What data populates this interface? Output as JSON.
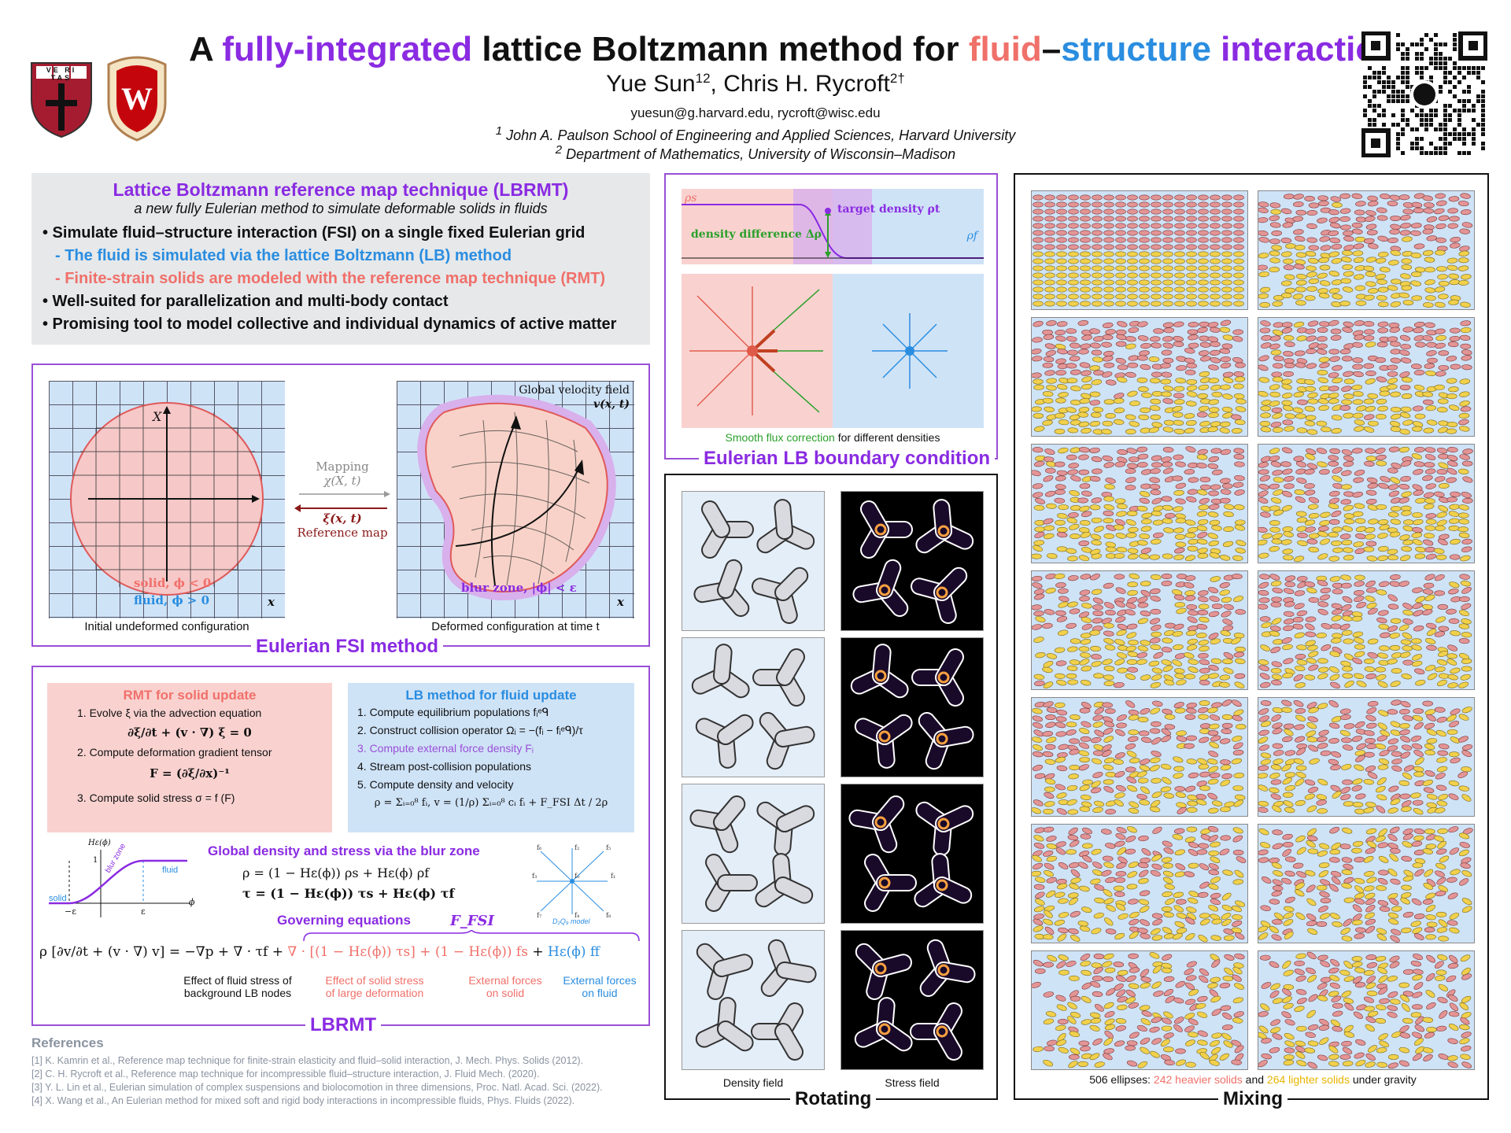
{
  "header": {
    "title_part1": "A ",
    "title_part2": "fully-integrated",
    "title_part3": " lattice Boltzmann method for ",
    "title_part4": "fluid",
    "title_part5": "–",
    "title_part6": "structure",
    "title_part7": " interaction",
    "authors_a": "Yue Sun",
    "authors_a_sup": "12",
    "authors_sep": ", Chris H. Rycroft",
    "authors_b_sup": "2†",
    "emails": "yuesun@g.harvard.edu, rycroft@wisc.edu",
    "aff1_sup": "1",
    "aff1": "John A. Paulson School of Engineering and Applied Sciences, Harvard University",
    "aff2_sup": "2",
    "aff2": "Department of Mathematics, University of Wisconsin–Madison",
    "harvard_shield_text": "VE RI TAS",
    "uw_logo_letter": "W"
  },
  "intro": {
    "title": "Lattice Boltzmann reference map technique (LBRMT)",
    "subtitle": "a new fully Eulerian method to simulate deformable solids in fluids",
    "b1": "• Simulate fluid–structure interaction (FSI) on a single fixed Eulerian grid",
    "b1a": "- The fluid is simulated via the lattice Boltzmann (LB) method",
    "b1b": "- Finite-strain solids are modeled with the reference map technique (RMT)",
    "b2": "• Well-suited for parallelization and multi-body contact",
    "b3": "• Promising tool to model collective and individual dynamics of active matter"
  },
  "fsi": {
    "label": "Eulerian FSI method",
    "axis_X": "X",
    "solid": "solid, ϕ < 0",
    "fluid": "fluid, ϕ > 0",
    "x1": "x",
    "x2": "x",
    "mapping": "Mapping",
    "chi": "χ(X, t)",
    "xi": "ξ(x, t)",
    "refmap": "Reference map",
    "global_vel": "Global velocity field",
    "v_xt": "v(x, t)",
    "blur": "blur zone, |ϕ| < ε",
    "cap1": "Initial undeformed configuration",
    "cap2": "Deformed configuration at time t"
  },
  "lbrmt": {
    "label": "LBRMT",
    "rmt_title": "RMT for solid update",
    "rmt1": "1. Evolve ξ via the advection equation",
    "rmt1_eq": "∂ξ/∂t + (v · ∇) ξ = 0",
    "rmt2": "2. Compute deformation gradient tensor",
    "rmt2_eq": "F = (∂ξ/∂x)⁻¹",
    "rmt3": "3. Compute solid stress σ = f (F)",
    "lb_title": "LB method for fluid update",
    "lb1": "1. Compute equilibrium populations fᵢᵉᑫ",
    "lb2": "2. Construct collision operator Ωᵢ = −(fᵢ − fᵢᵉᑫ)/τ",
    "lb3": "3. Compute external force density Fᵢ",
    "lb4": "4. Stream post-collision populations",
    "lb5": "5. Compute density and velocity",
    "lb5_eq": "ρ = Σᵢ₌₀⁸ fᵢ,  v = (1/ρ) Σᵢ₌₀⁸ cᵢ fᵢ + F_FSI Δt / 2ρ",
    "blur_title": "Global density and stress via the blur zone",
    "rho_eq": "ρ = (1 − Hε(ϕ)) ρs + Hε(ϕ) ρf",
    "tau_eq": "τ = (1 − Hε(ϕ)) τs + Hε(ϕ) τf",
    "gov_title": "Governing equations",
    "ffsi": "F_FSI",
    "gov_lhs": "ρ [∂v/∂t + (v · ∇) v] = −∇p + ∇ · τf +",
    "gov_rhs_red": "∇ · [(1 − Hε(ϕ)) τs] + (1 − Hε(ϕ)) fs",
    "gov_rhs_plus": "+",
    "gov_rhs_blue": "Hε(ϕ) ff",
    "ann1a": "Effect of fluid stress of",
    "ann1b": "background LB nodes",
    "ann2a": "Effect of solid stress",
    "ann2b": "of large deformation",
    "ann3a": "External forces",
    "ann3b": "on solid",
    "ann4a": "External forces",
    "ann4b": "on fluid",
    "plot_H": "Hε(ϕ)",
    "plot_one": "1",
    "plot_fluid": "fluid",
    "plot_solid": "solid",
    "plot_blur": "blur zone",
    "plot_neg_eps": "−ε",
    "plot_eps": "ε",
    "plot_phi": "ϕ",
    "d2q9": "D₂Q₉ model",
    "d2q9_labels": [
      "f₆",
      "f₂",
      "f₅",
      "f₃",
      "f₀",
      "f₁",
      "f₇",
      "f₄",
      "f₈"
    ],
    "d2q9_c": [
      "c₆",
      "c₂",
      "c₅",
      "c₃",
      "c₁",
      "c₇",
      "c₄",
      "c₈"
    ]
  },
  "refs": {
    "title": "References",
    "r1": "[1] K. Kamrin et al., Reference map technique for finite-strain elasticity and fluid–solid interaction, J. Mech. Phys. Solids (2012).",
    "r2": "[2] C. H. Rycroft et al., Reference map technique for incompressible fluid–structure interaction, J. Fluid Mech. (2020).",
    "r3": "[3] Y. L. Lin et al., Eulerian simulation of complex suspensions and biolocomotion in three dimensions, Proc. Natl. Acad. Sci. (2022).",
    "r4": "[4] X. Wang et al., An Eulerian method for mixed soft and rigid body interactions in incompressible fluids, Phys. Fluids (2022)."
  },
  "boundary": {
    "label": "Eulerian LB boundary condition",
    "rho_s": "ρs",
    "rho_f": "ρf",
    "target": "target density ρt",
    "diff": "density difference Δρ",
    "cap_green": "Smooth flux correction",
    "cap_rest": " for different densities"
  },
  "rotating": {
    "label": "Rotating",
    "cap1": "Density field",
    "cap2": "Stress field"
  },
  "mixing": {
    "label": "Mixing",
    "cap_a": "506 ellipses: ",
    "cap_b": "242 heavier solids",
    "cap_c": " and ",
    "cap_d": "264 lighter solids",
    "cap_e": " under gravity"
  },
  "colors": {
    "purple": "#8a2be2",
    "blue": "#2a8de0",
    "red": "#f0706a",
    "pink_bg": "#f9d6d6",
    "blue_bg": "#cfe3f7"
  }
}
